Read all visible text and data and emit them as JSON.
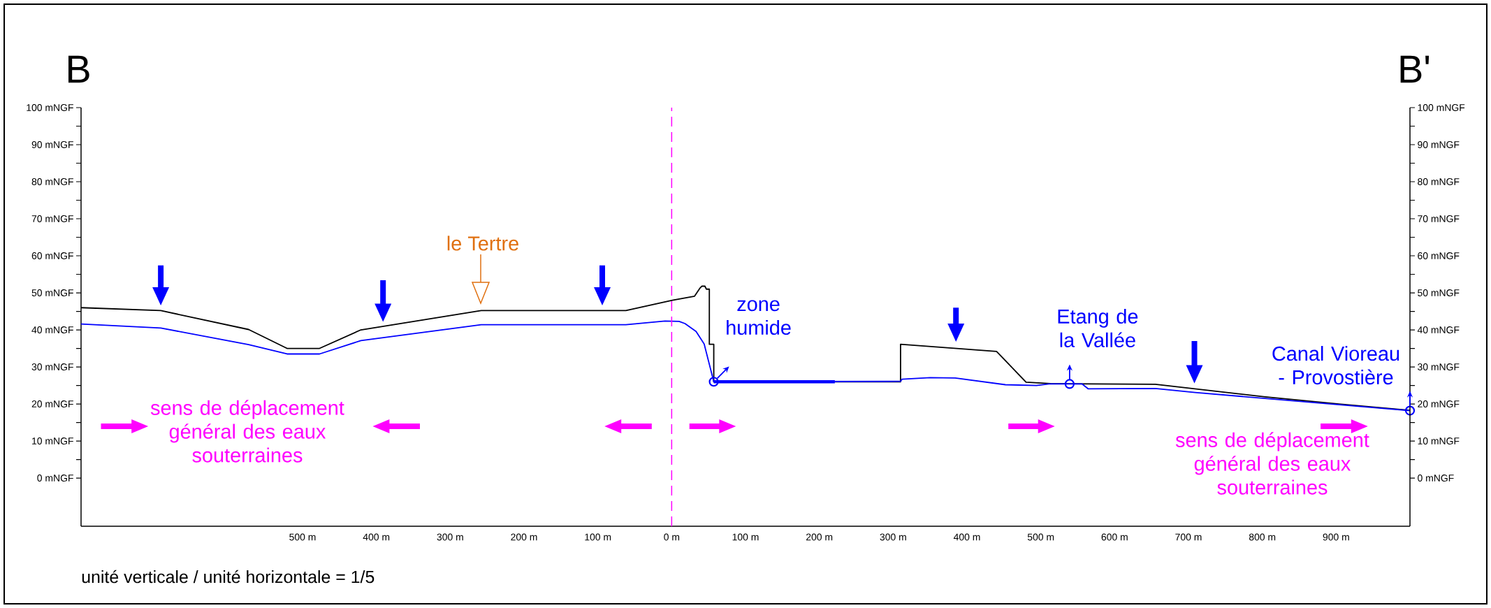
{
  "chart_data": {
    "type": "line",
    "xlim": [
      -800,
      1000
    ],
    "xticks": [
      {
        "value": -500,
        "label": "500 m"
      },
      {
        "value": -400,
        "label": "400 m"
      },
      {
        "value": -300,
        "label": "300 m"
      },
      {
        "value": -200,
        "label": "200 m"
      },
      {
        "value": -100,
        "label": "100 m"
      },
      {
        "value": 0,
        "label": "0 m"
      },
      {
        "value": 100,
        "label": "100 m"
      },
      {
        "value": 200,
        "label": "200 m"
      },
      {
        "value": 300,
        "label": "300 m"
      },
      {
        "value": 400,
        "label": "400 m"
      },
      {
        "value": 500,
        "label": "500 m"
      },
      {
        "value": 600,
        "label": "600 m"
      },
      {
        "value": 700,
        "label": "700 m"
      },
      {
        "value": 800,
        "label": "800 m"
      },
      {
        "value": 900,
        "label": "900 m"
      }
    ],
    "ylim": [
      -13,
      100
    ],
    "yticks": [
      {
        "value": 0,
        "label": "0 mNGF"
      },
      {
        "value": 10,
        "label": "10 mNGF"
      },
      {
        "value": 20,
        "label": "20 mNGF"
      },
      {
        "value": 30,
        "label": "30 mNGF"
      },
      {
        "value": 40,
        "label": "40 mNGF"
      },
      {
        "value": 50,
        "label": "50 mNGF"
      },
      {
        "value": 60,
        "label": "60 mNGF"
      },
      {
        "value": 70,
        "label": "70 mNGF"
      },
      {
        "value": 80,
        "label": "80 mNGF"
      },
      {
        "value": 90,
        "label": "90 mNGF"
      },
      {
        "value": 100,
        "label": "100 mNGF"
      }
    ],
    "y2lim": [
      -13,
      100
    ],
    "y2ticks": [
      {
        "value": 0,
        "label": "0 mNGF"
      },
      {
        "value": 10,
        "label": "10 mNGF"
      },
      {
        "value": 20,
        "label": "20 mNGF"
      },
      {
        "value": 30,
        "label": "30 mNGF"
      },
      {
        "value": 40,
        "label": "40 mNGF"
      },
      {
        "value": 50,
        "label": "50 mNGF"
      },
      {
        "value": 60,
        "label": "60 mNGF"
      },
      {
        "value": 70,
        "label": "70 mNGF"
      },
      {
        "value": 80,
        "label": "80 mNGF"
      },
      {
        "value": 90,
        "label": "90 mNGF"
      },
      {
        "value": 100,
        "label": "100 mNGF"
      }
    ],
    "series": [
      {
        "color": "#000000",
        "x": [
          -800,
          -692,
          -573,
          -521,
          -477,
          -421,
          -258,
          -62,
          1,
          31,
          38,
          41,
          45,
          47,
          51,
          51,
          57,
          57,
          310,
          310,
          440,
          480,
          513,
          655,
          804,
          904,
          1000
        ],
        "values": [
          46,
          45.2,
          40.1,
          35,
          35,
          40,
          45.2,
          45.2,
          48,
          49.1,
          51.2,
          51.8,
          51.8,
          51,
          51,
          36.1,
          36.1,
          26,
          26,
          36.1,
          34.2,
          25.9,
          25.5,
          25.3,
          21.9,
          20,
          18.3
        ]
      },
      {
        "color": "#0000ff",
        "x": [
          -800,
          -692,
          -573,
          -521,
          -477,
          -421,
          -258,
          -62,
          -9,
          10,
          18,
          33,
          44,
          57,
          310,
          312,
          350,
          384,
          452,
          494,
          511,
          556,
          564,
          655,
          709,
          1000
        ],
        "values": [
          41.6,
          40.5,
          36,
          33.5,
          33.5,
          37.1,
          41.4,
          41.4,
          42.4,
          42.3,
          41.7,
          39.6,
          36.2,
          26,
          26.1,
          26.7,
          27.1,
          27,
          25.2,
          25,
          25.4,
          25.4,
          24.1,
          24.2,
          23.1,
          18.2
        ]
      },
      {
        "color": "#0000ff",
        "x": [
          57,
          221
        ],
        "values": [
          26,
          26
        ]
      },
      {
        "type": "scatter",
        "color": "#0000ff",
        "marker": "circle",
        "x": [
          57,
          539,
          1000
        ],
        "values": [
          26,
          25.4,
          18.2
        ]
      }
    ],
    "ref_lines": [
      {
        "axis": "x",
        "value": 0,
        "color": "#ff00ff",
        "line_style": "dashed"
      }
    ],
    "annotations": [
      "B",
      "B'",
      "le Tertre",
      {
        "text": "zone humide",
        "x": 57,
        "y": 26
      },
      {
        "text": "Etang de la Vallée",
        "x": 539,
        "y": 25.4
      },
      {
        "text": "Canal Vioreau - Provostière",
        "x": 1000,
        "y": 18.2
      },
      "sens de déplacement général des eaux souterraines",
      "sens de déplacement général des eaux souterraines",
      "unité verticale / unité horizontale = 1/5"
    ]
  }
}
